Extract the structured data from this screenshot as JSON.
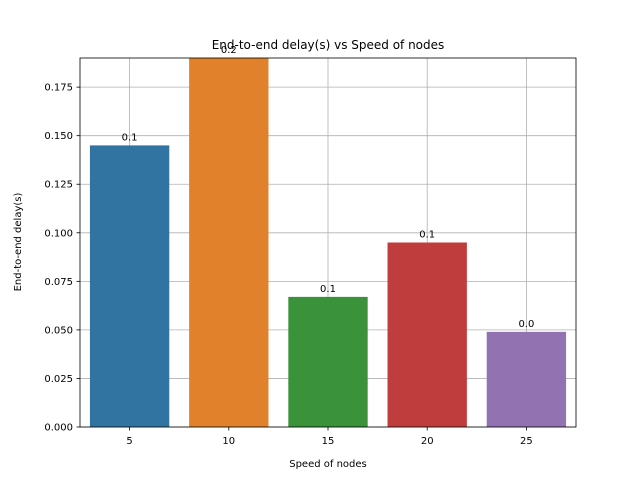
{
  "chart_data": {
    "type": "bar",
    "title": "End-to-end delay(s) vs Speed of nodes",
    "xlabel": "Speed of nodes",
    "ylabel": "End-to-end delay(s)",
    "categories": [
      "5",
      "10",
      "15",
      "20",
      "25"
    ],
    "values": [
      0.145,
      0.19,
      0.067,
      0.095,
      0.049
    ],
    "data_labels": [
      "0.1",
      "0.2",
      "0.1",
      "0.1",
      "0.0"
    ],
    "colors": [
      "#3274a1",
      "#e1812c",
      "#3a923a",
      "#c03d3e",
      "#9372b2"
    ],
    "ylim": [
      0,
      0.19
    ],
    "yticks": [
      "0.000",
      "0.025",
      "0.050",
      "0.075",
      "0.100",
      "0.125",
      "0.150",
      "0.175"
    ],
    "ytick_values": [
      0,
      0.025,
      0.05,
      0.075,
      0.1,
      0.125,
      0.15,
      0.175
    ],
    "grid": true,
    "legend": "none"
  }
}
